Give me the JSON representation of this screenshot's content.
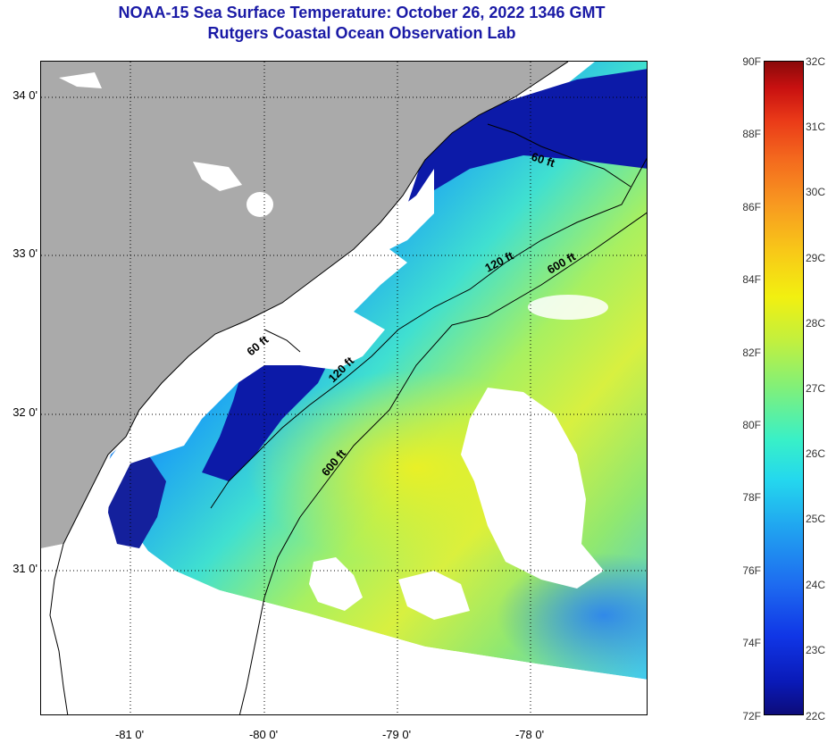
{
  "title": {
    "line1": "NOAA-15 Sea Surface Temperature:  October 26, 2022 1346 GMT",
    "line2": "Rutgers Coastal Ocean Observation Lab"
  },
  "map": {
    "latitude_labels": [
      "34 0'",
      "33 0'",
      "32 0'",
      "31 0'"
    ],
    "longitude_labels": [
      "-81 0'",
      "-80 0'",
      "-79 0'",
      "-78 0'"
    ],
    "contour_labels": [
      "60 ft",
      "120 ft",
      "600 ft",
      "60 ft",
      "120 ft",
      "600 ft"
    ],
    "colors": {
      "land": "#aaaaaa",
      "cloud": "#ffffff",
      "coast_line": "#000000"
    }
  },
  "colorbar": {
    "fahrenheit_labels": [
      "90F",
      "88F",
      "86F",
      "84F",
      "82F",
      "80F",
      "78F",
      "76F",
      "74F",
      "72F"
    ],
    "celsius_labels": [
      "32C",
      "31C",
      "30C",
      "29C",
      "28C",
      "27C",
      "26C",
      "25C",
      "24C",
      "23C",
      "22C"
    ],
    "range_f": [
      72,
      90
    ],
    "range_c": [
      22,
      32
    ]
  }
}
